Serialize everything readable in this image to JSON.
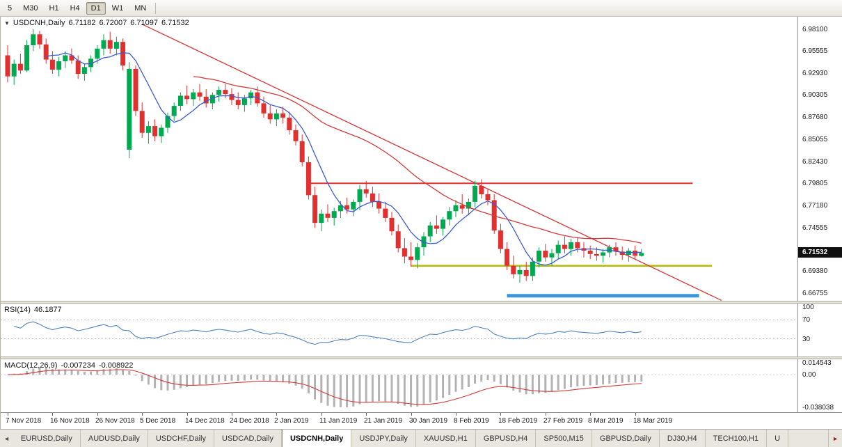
{
  "toolbar": {
    "timeframes": [
      {
        "label": "5",
        "active": false
      },
      {
        "label": "M30",
        "active": false
      },
      {
        "label": "H1",
        "active": false
      },
      {
        "label": "H4",
        "active": false
      },
      {
        "label": "D1",
        "active": true
      },
      {
        "label": "W1",
        "active": false
      },
      {
        "label": "MN",
        "active": false
      }
    ]
  },
  "chart_header": {
    "collapse_icon": "▼",
    "title": "USDCNH,Daily",
    "open": "6.71182",
    "high": "6.72007",
    "low": "6.71097",
    "close": "6.71532"
  },
  "chart_data": {
    "type": "candlestick",
    "title": "USDCNH,Daily",
    "price_min": 6.6585,
    "price_max": 6.9959,
    "current_price": "6.71532",
    "axis_labels": [
      "6.98100",
      "6.95555",
      "6.92930",
      "6.90305",
      "6.87680",
      "6.85055",
      "6.82430",
      "6.79805",
      "6.77180",
      "6.74555",
      "6.69380",
      "6.66755"
    ],
    "x_labels": [
      {
        "text": "7 Nov 2018",
        "index": 0
      },
      {
        "text": "16 Nov 2018",
        "index": 7
      },
      {
        "text": "26 Nov 2018",
        "index": 14
      },
      {
        "text": "5 Dec 2018",
        "index": 21
      },
      {
        "text": "14 Dec 2018",
        "index": 28
      },
      {
        "text": "24 Dec 2018",
        "index": 35
      },
      {
        "text": "2 Jan 2019",
        "index": 42
      },
      {
        "text": "11 Jan 2019",
        "index": 49
      },
      {
        "text": "21 Jan 2019",
        "index": 56
      },
      {
        "text": "30 Jan 2019",
        "index": 63
      },
      {
        "text": "8 Feb 2019",
        "index": 70
      },
      {
        "text": "18 Feb 2019",
        "index": 77
      },
      {
        "text": "27 Feb 2019",
        "index": 84
      },
      {
        "text": "8 Mar 2019",
        "index": 91
      },
      {
        "text": "18 Mar 2019",
        "index": 98
      }
    ],
    "ma_fast_period": 7,
    "ma_slow_period": 30,
    "colors": {
      "up": "#00a84f",
      "down": "#e03030",
      "ma_fast": "#3b5bd6",
      "ma_slow": "#d23a3a"
    },
    "overlays": {
      "trendline": {
        "name": "descending-trendline",
        "from_index": 21,
        "from_price": 6.987,
        "to_index": 111.5,
        "to_price": 6.659,
        "color": "#d23a3a"
      },
      "hlines": [
        {
          "name": "resistance-line",
          "price": 6.798,
          "from_index": 47,
          "to_index": 107,
          "color": "#e03030",
          "width": 2
        },
        {
          "name": "support-line-yellow",
          "price": 6.7,
          "from_index": 63,
          "to_index": 110,
          "color": "#b8bc00",
          "width": 2.5
        },
        {
          "name": "support-line-blue",
          "price": 6.6645,
          "from_index": 78,
          "to_index": 108,
          "color": "#3a96dd",
          "width": 5
        }
      ]
    },
    "candles": [
      [
        6.95,
        6.962,
        6.918,
        6.925
      ],
      [
        6.925,
        6.945,
        6.915,
        6.94
      ],
      [
        6.94,
        6.952,
        6.928,
        6.932
      ],
      [
        6.932,
        6.968,
        6.93,
        6.962
      ],
      [
        6.962,
        6.981,
        6.955,
        6.975
      ],
      [
        6.975,
        6.979,
        6.958,
        6.963
      ],
      [
        6.963,
        6.97,
        6.94,
        6.945
      ],
      [
        6.945,
        6.955,
        6.928,
        6.933
      ],
      [
        6.933,
        6.948,
        6.925,
        6.943
      ],
      [
        6.943,
        6.955,
        6.935,
        6.95
      ],
      [
        6.95,
        6.958,
        6.94,
        6.944
      ],
      [
        6.944,
        6.95,
        6.922,
        6.928
      ],
      [
        6.928,
        6.94,
        6.92,
        6.936
      ],
      [
        6.936,
        6.95,
        6.93,
        6.946
      ],
      [
        6.946,
        6.962,
        6.94,
        6.958
      ],
      [
        6.958,
        6.975,
        6.95,
        6.968
      ],
      [
        6.968,
        6.978,
        6.952,
        6.958
      ],
      [
        6.958,
        6.972,
        6.95,
        6.966
      ],
      [
        6.966,
        6.97,
        6.932,
        6.938
      ],
      [
        6.838,
        6.942,
        6.828,
        6.934
      ],
      [
        6.934,
        6.938,
        6.878,
        6.884
      ],
      [
        6.884,
        6.894,
        6.852,
        6.858
      ],
      [
        6.858,
        6.872,
        6.845,
        6.866
      ],
      [
        6.866,
        6.874,
        6.848,
        6.854
      ],
      [
        6.854,
        6.868,
        6.846,
        6.864
      ],
      [
        6.864,
        6.882,
        6.858,
        6.878
      ],
      [
        6.878,
        6.894,
        6.872,
        6.89
      ],
      [
        6.89,
        6.906,
        6.884,
        6.902
      ],
      [
        6.902,
        6.914,
        6.892,
        6.898
      ],
      [
        6.898,
        6.91,
        6.89,
        6.906
      ],
      [
        6.906,
        6.916,
        6.896,
        6.901
      ],
      [
        6.901,
        6.91,
        6.888,
        6.893
      ],
      [
        6.893,
        6.906,
        6.886,
        6.903
      ],
      [
        6.903,
        6.913,
        6.895,
        6.909
      ],
      [
        6.909,
        6.916,
        6.899,
        6.904
      ],
      [
        6.904,
        6.911,
        6.891,
        6.897
      ],
      [
        6.897,
        6.906,
        6.886,
        6.891
      ],
      [
        6.891,
        6.903,
        6.883,
        6.899
      ],
      [
        6.899,
        6.909,
        6.891,
        6.906
      ],
      [
        6.906,
        6.913,
        6.889,
        6.893
      ],
      [
        6.893,
        6.901,
        6.876,
        6.881
      ],
      [
        6.881,
        6.891,
        6.869,
        6.874
      ],
      [
        6.874,
        6.886,
        6.866,
        6.881
      ],
      [
        6.881,
        6.889,
        6.869,
        6.876
      ],
      [
        6.876,
        6.883,
        6.856,
        6.861
      ],
      [
        6.861,
        6.868,
        6.843,
        6.848
      ],
      [
        6.848,
        6.856,
        6.818,
        6.823
      ],
      [
        6.823,
        6.83,
        6.779,
        6.784
      ],
      [
        6.784,
        6.794,
        6.745,
        6.751
      ],
      [
        6.751,
        6.767,
        6.741,
        6.762
      ],
      [
        6.762,
        6.773,
        6.752,
        6.757
      ],
      [
        6.757,
        6.769,
        6.748,
        6.765
      ],
      [
        6.765,
        6.777,
        6.757,
        6.772
      ],
      [
        6.772,
        6.781,
        6.762,
        6.767
      ],
      [
        6.767,
        6.779,
        6.759,
        6.776
      ],
      [
        6.776,
        6.796,
        6.766,
        6.791
      ],
      [
        6.791,
        6.801,
        6.781,
        6.786
      ],
      [
        6.786,
        6.794,
        6.77,
        6.776
      ],
      [
        6.776,
        6.786,
        6.762,
        6.768
      ],
      [
        6.768,
        6.776,
        6.752,
        6.757
      ],
      [
        6.757,
        6.764,
        6.736,
        6.741
      ],
      [
        6.741,
        6.749,
        6.716,
        6.721
      ],
      [
        6.721,
        6.733,
        6.703,
        6.711
      ],
      [
        6.711,
        6.728,
        6.699,
        6.707
      ],
      [
        6.707,
        6.727,
        6.697,
        6.722
      ],
      [
        6.722,
        6.74,
        6.712,
        6.735
      ],
      [
        6.735,
        6.752,
        6.728,
        6.748
      ],
      [
        6.748,
        6.76,
        6.738,
        6.744
      ],
      [
        6.744,
        6.758,
        6.736,
        6.755
      ],
      [
        6.755,
        6.77,
        6.748,
        6.765
      ],
      [
        6.765,
        6.778,
        6.758,
        6.772
      ],
      [
        6.772,
        6.785,
        6.762,
        6.768
      ],
      [
        6.768,
        6.78,
        6.76,
        6.776
      ],
      [
        6.776,
        6.801,
        6.77,
        6.795
      ],
      [
        6.795,
        6.803,
        6.78,
        6.785
      ],
      [
        6.785,
        6.792,
        6.772,
        6.778
      ],
      [
        6.778,
        6.785,
        6.738,
        6.742
      ],
      [
        6.742,
        6.75,
        6.715,
        6.72
      ],
      [
        6.72,
        6.728,
        6.695,
        6.7
      ],
      [
        6.7,
        6.712,
        6.685,
        6.69
      ],
      [
        6.69,
        6.7,
        6.68,
        6.695
      ],
      [
        6.695,
        6.705,
        6.682,
        6.688
      ],
      [
        6.688,
        6.71,
        6.682,
        6.705
      ],
      [
        6.705,
        6.722,
        6.698,
        6.718
      ],
      [
        6.718,
        6.726,
        6.705,
        6.71
      ],
      [
        6.71,
        6.72,
        6.7,
        6.715
      ],
      [
        6.715,
        6.73,
        6.708,
        6.725
      ],
      [
        6.725,
        6.735,
        6.715,
        6.72
      ],
      [
        6.72,
        6.732,
        6.712,
        6.728
      ],
      [
        6.728,
        6.734,
        6.716,
        6.721
      ],
      [
        6.721,
        6.728,
        6.71,
        6.718
      ],
      [
        6.718,
        6.724,
        6.708,
        6.714
      ],
      [
        6.714,
        6.722,
        6.706,
        6.712
      ],
      [
        6.712,
        6.72,
        6.704,
        6.716
      ],
      [
        6.716,
        6.725,
        6.71,
        6.722
      ],
      [
        6.722,
        6.728,
        6.712,
        6.717
      ],
      [
        6.717,
        6.723,
        6.707,
        6.713
      ],
      [
        6.713,
        6.721,
        6.705,
        6.718
      ],
      [
        6.718,
        6.724,
        6.708,
        6.712
      ],
      [
        6.71182,
        6.72007,
        6.71097,
        6.71532
      ]
    ]
  },
  "rsi": {
    "label": "RSI(14)",
    "value": "46.1877",
    "period": 14,
    "levels": [
      70,
      30
    ],
    "axis_labels": [
      "100",
      "70",
      "30"
    ],
    "color": "#4f81bd"
  },
  "macd": {
    "label": "MACD(12,26,9)",
    "value_macd": "-0.007234",
    "value_signal": "-0.008922",
    "fast": 12,
    "slow": 26,
    "signal": 9,
    "range": [
      -0.0395,
      0.0155
    ],
    "axis_labels": [
      {
        "text": "0.014543",
        "value": 0.014543
      },
      {
        "text": "0.00",
        "value": 0
      },
      {
        "text": "-0.038038",
        "value": -0.038038
      }
    ],
    "histogram_color": "#b3b3b3",
    "signal_color": "#d23a3a"
  },
  "footer": {
    "left_arrow": "◄",
    "right_arrow": "►",
    "tabs": [
      {
        "label": "EURUSD,Daily",
        "active": false
      },
      {
        "label": "AUDUSD,Daily",
        "active": false
      },
      {
        "label": "USDCHF,Daily",
        "active": false
      },
      {
        "label": "USDCAD,Daily",
        "active": false
      },
      {
        "label": "USDCNH,Daily",
        "active": true
      },
      {
        "label": "USDJPY,Daily",
        "active": false
      },
      {
        "label": "XAUUSD,H1",
        "active": false
      },
      {
        "label": "GBPUSD,H4",
        "active": false
      },
      {
        "label": "SP500,M15",
        "active": false
      },
      {
        "label": "GBPUSD,Daily",
        "active": false
      },
      {
        "label": "DJ30,H4",
        "active": false
      },
      {
        "label": "TECH100,H1",
        "active": false
      },
      {
        "label": "U",
        "active": false
      }
    ]
  }
}
